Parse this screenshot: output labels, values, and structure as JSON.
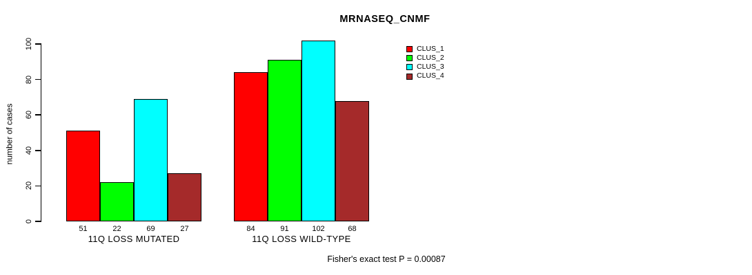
{
  "chart_data": {
    "type": "bar",
    "title": "MRNASEQ_CNMF",
    "ylabel": "number of cases",
    "xlabel": "",
    "ylim": [
      0,
      100
    ],
    "yticks": [
      0,
      20,
      40,
      60,
      80,
      100
    ],
    "grid": false,
    "legend_position": "top-right",
    "groups": [
      "11Q LOSS MUTATED",
      "11Q LOSS WILD-TYPE"
    ],
    "series": [
      {
        "name": "CLUS_1",
        "color": "#FF0000",
        "values": [
          51,
          84
        ]
      },
      {
        "name": "CLUS_2",
        "color": "#00FF00",
        "values": [
          22,
          91
        ]
      },
      {
        "name": "CLUS_3",
        "color": "#00FFFF",
        "values": [
          69,
          102
        ]
      },
      {
        "name": "CLUS_4",
        "color": "#A52A2A",
        "values": [
          27,
          68
        ]
      }
    ],
    "bar_value_labels_shown": true,
    "annotation": "Fisher's exact test P = 0.00087"
  }
}
